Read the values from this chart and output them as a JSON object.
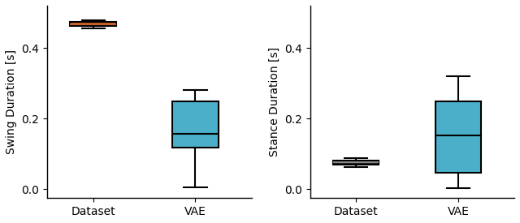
{
  "swing_dataset": {
    "whislo": 0.456,
    "q1": 0.463,
    "med": 0.468,
    "q3": 0.473,
    "whishi": 0.479,
    "box_color": "#c8622a",
    "median_color": "#c8622a"
  },
  "swing_vae": {
    "whislo": 0.005,
    "q1": 0.118,
    "med": 0.158,
    "q3": 0.248,
    "whishi": 0.282,
    "box_color": "#4bafc9",
    "median_color": "black"
  },
  "stance_dataset": {
    "whislo": 0.063,
    "q1": 0.071,
    "med": 0.076,
    "q3": 0.082,
    "whishi": 0.089,
    "box_color": "#222222",
    "median_color": "#888888"
  },
  "stance_vae": {
    "whislo": 0.003,
    "q1": 0.048,
    "med": 0.152,
    "q3": 0.248,
    "whishi": 0.32,
    "box_color": "#4bafc9",
    "median_color": "black"
  },
  "swing_ylabel": "Swing Duration [s]",
  "stance_ylabel": "Stance Duration [s]",
  "xlabels": [
    "Dataset",
    "VAE"
  ],
  "ylim": [
    -0.025,
    0.52
  ],
  "yticks": [
    0.0,
    0.2,
    0.4
  ],
  "box_width": 0.45,
  "linewidth": 1.5
}
